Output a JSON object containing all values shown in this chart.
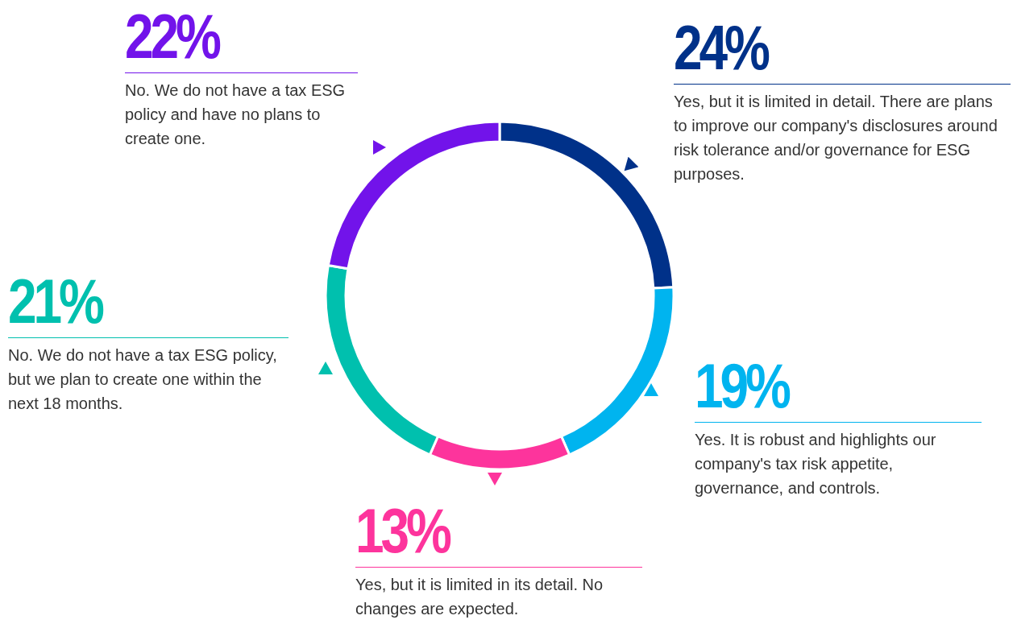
{
  "chart_data": {
    "type": "donut",
    "categories": [
      "Yes, but it is limited in detail. There are plans to improve our company's disclosures around risk tolerance and/or governance for ESG purposes.",
      "Yes. It is robust and highlights our company's tax risk appetite, governance, and controls.",
      "Yes, but it is limited in its detail. No changes are expected.",
      "No. We do not have a tax ESG policy, but we plan to create one within the next 18 months.",
      "No. We do not have a tax ESG policy and have no plans to create one."
    ],
    "values": [
      24,
      19,
      13,
      21,
      22
    ],
    "value_labels": [
      "24%",
      "19%",
      "13%",
      "21%",
      "22%"
    ],
    "colors": [
      "#003189",
      "#00b4ef",
      "#fd349c",
      "#00c0ae",
      "#7213ea"
    ]
  }
}
